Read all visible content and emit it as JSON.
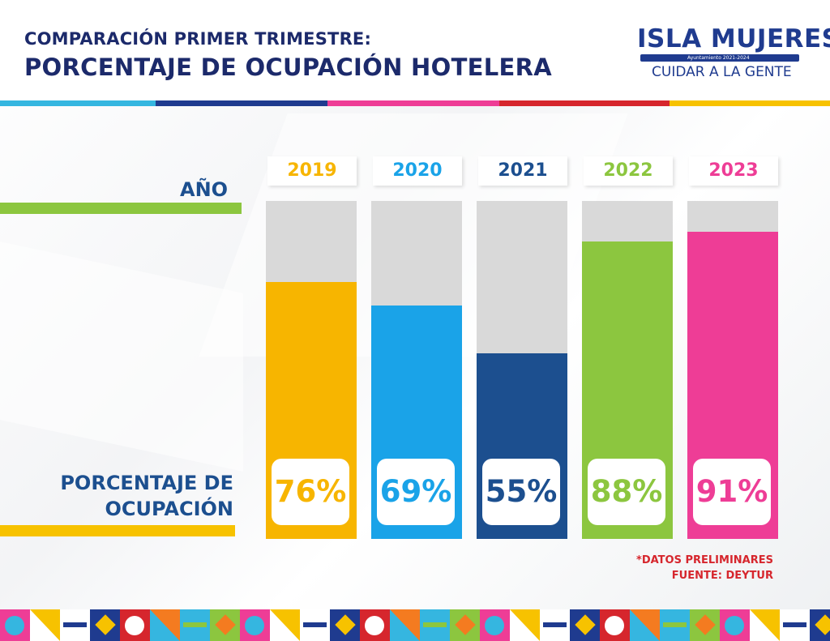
{
  "header": {
    "title_line1": "COMPARACIÓN PRIMER TRIMESTRE:",
    "title_line2": "PORCENTAJE DE OCUPACIÓN HOTELERA"
  },
  "logo": {
    "name": "ISLA MUJERES",
    "subtitle": "Ayuntamiento 2021-2024",
    "slogan": "CUIDAR A LA GENTE"
  },
  "labels": {
    "year_axis": "AÑO",
    "value_axis": "PORCENTAJE DE OCUPACIÓN"
  },
  "notes": {
    "preliminary": "*DATOS PRELIMINARES",
    "source": "FUENTE: DEYTUR"
  },
  "colors": {
    "title": "#1c2a6b",
    "label": "#1c4f8f",
    "note": "#d6262d",
    "bar_background": "#d9d9d9"
  },
  "chart_data": {
    "type": "bar",
    "title": "PORCENTAJE DE OCUPACIÓN HOTELERA",
    "xlabel": "AÑO",
    "ylabel": "PORCENTAJE DE OCUPACIÓN",
    "ylim": [
      0,
      100
    ],
    "grid": false,
    "categories": [
      "2019",
      "2020",
      "2021",
      "2022",
      "2023"
    ],
    "values": [
      76,
      69,
      55,
      88,
      91
    ],
    "value_labels": [
      "76%",
      "69%",
      "55%",
      "88%",
      "91%"
    ],
    "bar_colors": [
      "#f7b500",
      "#1aa3e8",
      "#1c4f8f",
      "#8cc63f",
      "#ee3d96"
    ]
  }
}
